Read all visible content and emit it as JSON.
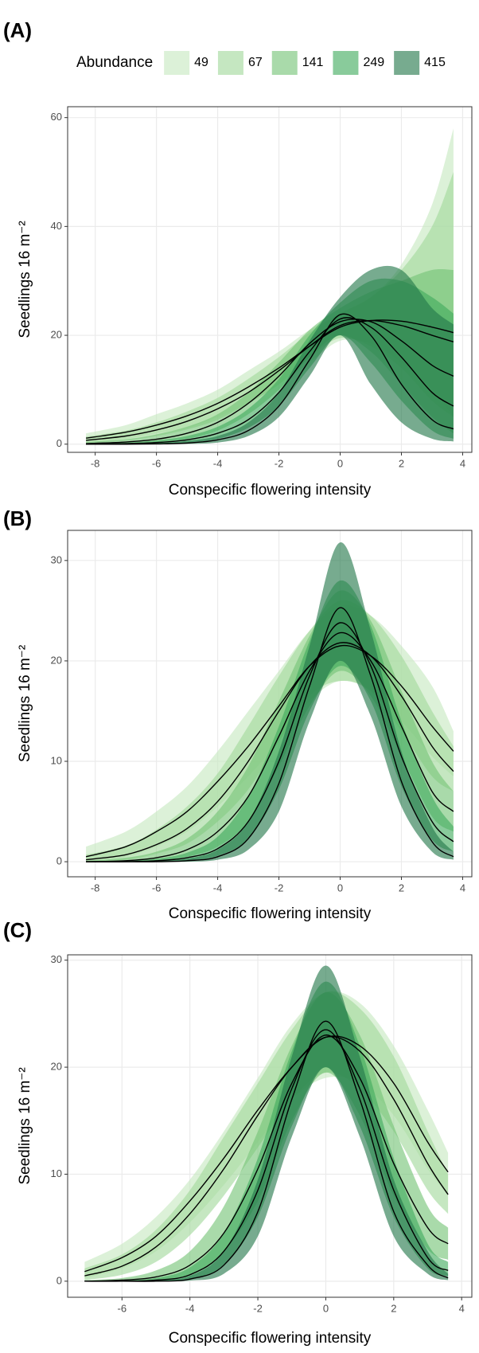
{
  "chart_data": [
    {
      "type": "line",
      "panel_label": "(A)",
      "x_label": "Conspecific flowering intensity",
      "y_label": "Seedlings 16 m⁻²",
      "legend": {
        "title": "Abundance",
        "position": "top"
      },
      "grid": true,
      "xlim": [
        -8.9,
        4.3
      ],
      "xticks": [
        -8,
        -6,
        -4,
        -2,
        0,
        2,
        4
      ],
      "ylim": [
        -1.5,
        62
      ],
      "yticks": [
        0,
        20,
        40,
        60
      ],
      "x": [
        -8.3,
        -7,
        -6,
        -5,
        -4,
        -3,
        -2,
        -1,
        0,
        1,
        2,
        3,
        3.7
      ],
      "series": [
        {
          "name": "49",
          "color": "#c7e9c0",
          "values": [
            1.1,
            2.2,
            3.5,
            5.2,
            7.5,
            10.5,
            14,
            18,
            21.5,
            22.7,
            22.6,
            21.5,
            20.5
          ],
          "upper": [
            2,
            3.5,
            5.5,
            7.5,
            10,
            13.5,
            17,
            21,
            24,
            27,
            33,
            44,
            58
          ],
          "lower": [
            0.3,
            1,
            2,
            3,
            5,
            7.5,
            11,
            15,
            19,
            18.5,
            15,
            10,
            5
          ]
        },
        {
          "name": "67",
          "color": "#a1d99b",
          "values": [
            0.7,
            1.5,
            2.6,
            4.2,
            6.5,
            9.5,
            13.5,
            18,
            21.8,
            22.7,
            21.8,
            20,
            18.8
          ],
          "upper": [
            1.4,
            2.5,
            4,
            6,
            8.5,
            12,
            16,
            20.5,
            24,
            27,
            32,
            40,
            50
          ],
          "lower": [
            0.2,
            0.7,
            1.5,
            2.7,
            4.5,
            7.5,
            11,
            16,
            19.5,
            18,
            14,
            8,
            5
          ]
        },
        {
          "name": "141",
          "color": "#74c476",
          "values": [
            0.1,
            0.4,
            0.9,
            2,
            4,
            7.5,
            12.5,
            18.5,
            22.5,
            22.5,
            19,
            14.5,
            12.5
          ],
          "upper": [
            0.4,
            0.9,
            1.8,
            3.2,
            5.5,
            9.5,
            15,
            21,
            25,
            28,
            30,
            32,
            32
          ],
          "lower": [
            0,
            0.1,
            0.4,
            1,
            2.5,
            5.5,
            10,
            16,
            20,
            17,
            11,
            5,
            2
          ]
        },
        {
          "name": "249",
          "color": "#41ab5d",
          "values": [
            0,
            0.1,
            0.3,
            0.8,
            2,
            4.5,
            9.5,
            17,
            23,
            21.5,
            16,
            9.5,
            7
          ],
          "upper": [
            0.1,
            0.3,
            0.7,
            1.5,
            3.2,
            6.5,
            12,
            20,
            26,
            30,
            30,
            27,
            24
          ],
          "lower": [
            0,
            0,
            0.1,
            0.3,
            1,
            3,
            7,
            14,
            20,
            15,
            8,
            2.5,
            1
          ]
        },
        {
          "name": "415",
          "color": "#23784a",
          "values": [
            0,
            0,
            0.05,
            0.2,
            0.8,
            2.5,
            7,
            15.5,
            23.8,
            20,
            11,
            4.5,
            2.8
          ],
          "upper": [
            0,
            0.1,
            0.2,
            0.6,
            1.5,
            4,
            9.5,
            19,
            27,
            32,
            32,
            25,
            22
          ],
          "lower": [
            0,
            0,
            0,
            0.05,
            0.3,
            1.5,
            5,
            12.5,
            20,
            11,
            4,
            1,
            0.5
          ]
        }
      ]
    },
    {
      "type": "line",
      "panel_label": "(B)",
      "x_label": "Conspecific flowering intensity",
      "y_label": "Seedlings 16 m⁻²",
      "grid": true,
      "xlim": [
        -8.9,
        4.3
      ],
      "xticks": [
        -8,
        -6,
        -4,
        -2,
        0,
        2,
        4
      ],
      "ylim": [
        -1.5,
        33
      ],
      "yticks": [
        0,
        10,
        20,
        30
      ],
      "x": [
        -8.3,
        -7,
        -6,
        -5,
        -4,
        -3,
        -2,
        -1,
        0,
        1,
        2,
        3,
        3.7
      ],
      "series": [
        {
          "color": "#c7e9c0",
          "values": [
            0.5,
            1.5,
            3,
            5,
            8,
            11.5,
            15.5,
            19.5,
            21.5,
            20.5,
            17.5,
            13.5,
            11
          ],
          "upper": [
            1.5,
            3,
            5,
            7.5,
            11,
            15,
            19,
            23,
            25.5,
            24.5,
            21.5,
            17.5,
            13
          ],
          "lower": [
            0.1,
            0.5,
            1.5,
            3,
            5.5,
            8.5,
            12,
            16,
            18,
            17,
            14,
            10.5,
            8.5
          ]
        },
        {
          "color": "#a1d99b",
          "values": [
            0.2,
            0.7,
            1.7,
            3.3,
            6,
            10,
            15,
            19.5,
            21.8,
            20.5,
            16.5,
            11.5,
            9
          ],
          "upper": [
            0.7,
            1.6,
            3.2,
            5.5,
            8.8,
            13.5,
            18.5,
            23,
            26,
            24.5,
            20.5,
            15,
            11.5
          ],
          "lower": [
            0,
            0.2,
            0.8,
            1.8,
            4,
            7.2,
            12,
            16.5,
            18,
            17,
            13,
            8.5,
            7
          ]
        },
        {
          "color": "#74c476",
          "values": [
            0,
            0.1,
            0.4,
            1.2,
            3,
            6.5,
            12.5,
            19,
            22.8,
            20,
            13.5,
            7,
            5
          ],
          "upper": [
            0.1,
            0.4,
            1,
            2.3,
            5,
            9.5,
            16,
            22.5,
            27,
            24,
            17,
            10,
            7
          ],
          "lower": [
            0,
            0,
            0.1,
            0.5,
            1.5,
            4,
            9.5,
            15.5,
            19,
            16.5,
            10.5,
            4.5,
            3
          ]
        },
        {
          "color": "#41ab5d",
          "values": [
            0,
            0,
            0.1,
            0.4,
            1.3,
            4,
            10,
            18.5,
            23.8,
            19.5,
            10.5,
            4,
            2
          ],
          "upper": [
            0,
            0.1,
            0.3,
            0.9,
            2.5,
            6.5,
            13.5,
            22,
            28,
            23.5,
            14,
            6.5,
            3.5
          ],
          "lower": [
            0,
            0,
            0,
            0.1,
            0.6,
            2.3,
            7.2,
            15,
            19.5,
            16,
            7.5,
            2.2,
            1
          ]
        },
        {
          "color": "#23784a",
          "values": [
            0,
            0,
            0,
            0.1,
            0.5,
            2.3,
            7.8,
            17.5,
            25.3,
            18.5,
            8,
            2,
            0.5
          ],
          "upper": [
            0,
            0,
            0.1,
            0.3,
            1.2,
            4,
            11,
            21.5,
            31.8,
            23,
            11,
            3.5,
            1
          ],
          "lower": [
            0,
            0,
            0,
            0,
            0.2,
            1.2,
            5,
            14,
            20,
            14.5,
            5.5,
            1,
            0.2
          ]
        }
      ]
    },
    {
      "type": "line",
      "panel_label": "(C)",
      "x_label": "Conspecific flowering intensity",
      "y_label": "Seedlings 16 m⁻²",
      "grid": true,
      "xlim": [
        -7.6,
        4.3
      ],
      "xticks": [
        -6,
        -4,
        -2,
        0,
        2,
        4
      ],
      "ylim": [
        -1.5,
        30.5
      ],
      "yticks": [
        0,
        10,
        20,
        30
      ],
      "x": [
        -7.1,
        -6,
        -5,
        -4,
        -3,
        -2,
        -1,
        0,
        1,
        2,
        3,
        3.6
      ],
      "series": [
        {
          "color": "#c7e9c0",
          "values": [
            0.9,
            2.2,
            4.2,
            7.5,
            11.5,
            16,
            20,
            22.8,
            22,
            18.5,
            13,
            10.2
          ],
          "upper": [
            1.8,
            3.5,
            6,
            9.5,
            14,
            19,
            24,
            27,
            26,
            22,
            16,
            12
          ],
          "lower": [
            0.3,
            1.2,
            2.8,
            5.5,
            9,
            13,
            17,
            19,
            18.5,
            15.5,
            10.5,
            8
          ]
        },
        {
          "color": "#a1d99b",
          "values": [
            0.5,
            1.4,
            3.2,
            6.3,
            10.5,
            15.5,
            20,
            22.8,
            21.5,
            17,
            11,
            8.1
          ],
          "upper": [
            1.2,
            2.5,
            4.8,
            8.5,
            13.5,
            18.5,
            23.5,
            27,
            25.5,
            21,
            14,
            10
          ],
          "lower": [
            0.1,
            0.6,
            1.8,
            4.3,
            8,
            12.5,
            17,
            19.5,
            18,
            14,
            8.5,
            6.3
          ]
        },
        {
          "color": "#74c476",
          "values": [
            0,
            0.1,
            0.4,
            1.5,
            4.5,
            10.5,
            18.5,
            23,
            19,
            11,
            5,
            3.5
          ],
          "upper": [
            0.1,
            0.3,
            1,
            2.8,
            7,
            14,
            22,
            27,
            23,
            14.5,
            7,
            5
          ],
          "lower": [
            0,
            0,
            0.1,
            0.6,
            2.8,
            7.5,
            15,
            19.5,
            15.5,
            8,
            3,
            2
          ]
        },
        {
          "color": "#41ab5d",
          "values": [
            0,
            0,
            0.1,
            0.6,
            2.8,
            8.5,
            18,
            23.5,
            18,
            8.5,
            2.2,
            1
          ],
          "upper": [
            0,
            0.1,
            0.3,
            1.3,
            4.5,
            11.5,
            21.5,
            28,
            22,
            11.5,
            3.5,
            1.8
          ],
          "lower": [
            0,
            0,
            0,
            0.2,
            1.5,
            6,
            14.5,
            20,
            14.5,
            6,
            1.2,
            0.5
          ]
        },
        {
          "color": "#23784a",
          "values": [
            0,
            0,
            0,
            0.2,
            1.5,
            6.5,
            17,
            24.3,
            17,
            6.5,
            1.5,
            0.3
          ],
          "upper": [
            0,
            0,
            0.1,
            0.5,
            2.8,
            9.5,
            21,
            29.5,
            21,
            9.5,
            2.8,
            0.7
          ],
          "lower": [
            0,
            0,
            0,
            0.05,
            0.7,
            4.2,
            13.5,
            20,
            13.5,
            4.2,
            0.7,
            0.1
          ]
        }
      ]
    }
  ]
}
